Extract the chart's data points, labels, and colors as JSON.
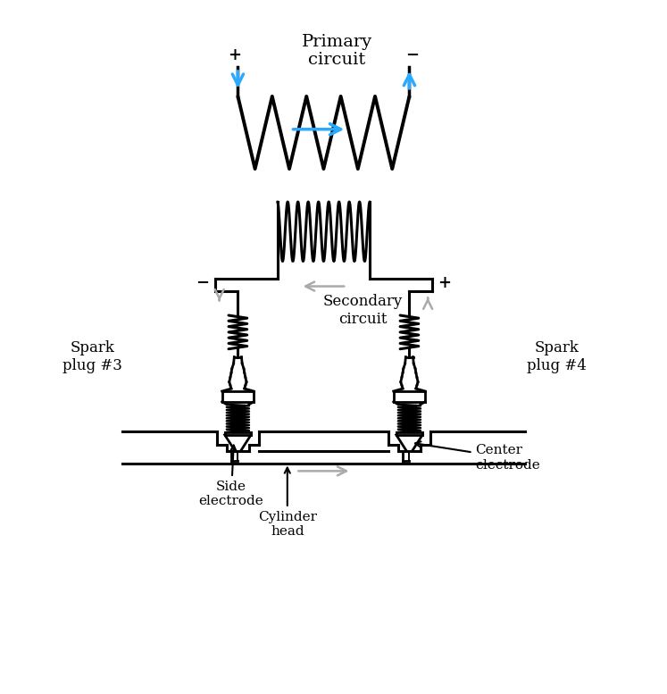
{
  "bg_color": "#ffffff",
  "line_color": "#000000",
  "blue_color": "#29aaff",
  "gray_color": "#aaaaaa",
  "title": "Primary\ncircuit",
  "secondary_label": "Secondary\ncircuit",
  "spark3_label": "Spark\nplug #3",
  "spark4_label": "Spark\nplug #4",
  "side_electrode_label": "Side\nelectrode",
  "cylinder_head_label": "Cylinder\nhead",
  "center_electrode_label": "Center\nelectrode",
  "plus": "+",
  "minus": "−",
  "figsize": [
    7.47,
    7.77
  ],
  "dpi": 100
}
